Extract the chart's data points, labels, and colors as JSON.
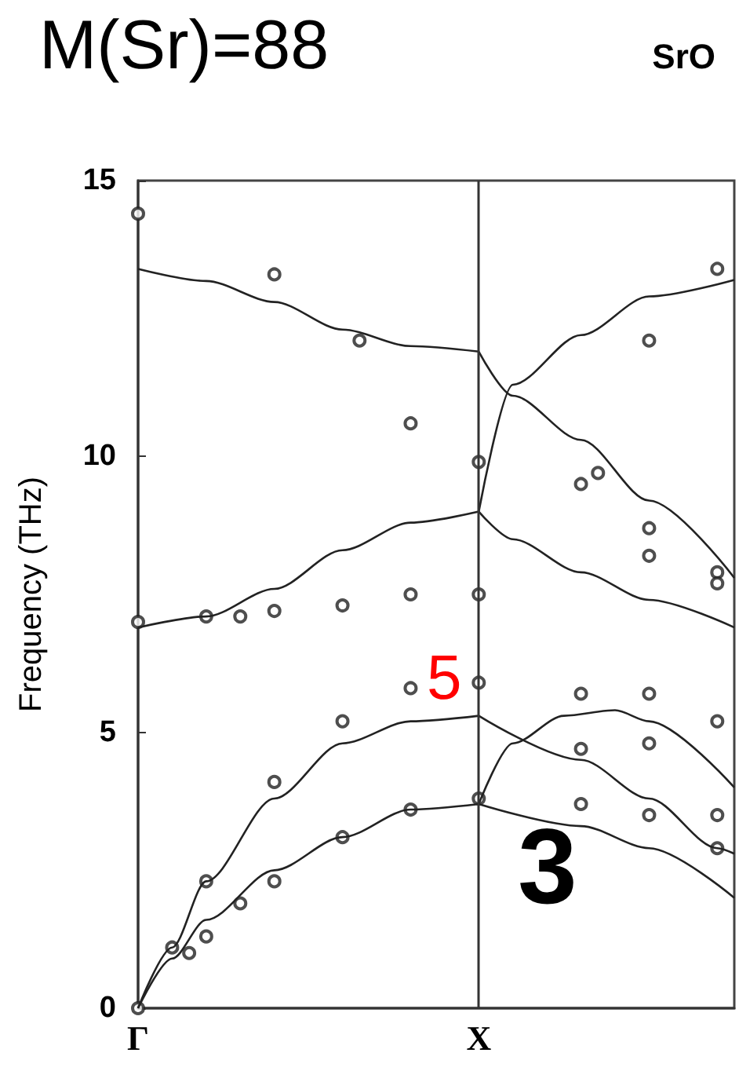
{
  "chart_data": {
    "type": "line",
    "title": "M(Sr)=88",
    "subtitle": "SrO",
    "ylabel": "Frequency (THz)",
    "categories": [
      "Γ",
      null,
      null,
      null,
      null,
      null,
      null,
      null,
      null,
      null,
      null,
      null,
      null,
      null,
      null,
      null,
      null,
      null,
      null,
      null,
      "X",
      null,
      null,
      null,
      null,
      null,
      null,
      null,
      null,
      null,
      null,
      null,
      null,
      null,
      null,
      null
    ],
    "ylim": [
      0,
      15
    ],
    "yticks": [
      0,
      5,
      10,
      15
    ],
    "ref_lines": [
      {
        "axis": "x",
        "value": "X",
        "color": "#333333"
      }
    ],
    "annotations": [
      "5",
      "3"
    ],
    "series": [
      {
        "type": "line",
        "color": "#222222",
        "marker": "none",
        "values": [
          13.4,
          null,
          null,
          null,
          13.18,
          null,
          null,
          null,
          12.8,
          null,
          null,
          null,
          12.3,
          null,
          null,
          null,
          12.0,
          null,
          null,
          null,
          11.9,
          null,
          null,
          null,
          null,
          null,
          null,
          null,
          null,
          null,
          null,
          null,
          null,
          null,
          null,
          null
        ]
      },
      {
        "type": "line",
        "color": "#222222",
        "marker": "none",
        "values": [
          6.9,
          null,
          null,
          null,
          7.1,
          null,
          null,
          null,
          7.6,
          null,
          null,
          null,
          8.3,
          null,
          null,
          null,
          8.8,
          null,
          null,
          null,
          9.0,
          null,
          null,
          null,
          null,
          null,
          null,
          null,
          null,
          null,
          null,
          null,
          null,
          null,
          null,
          null
        ]
      },
      {
        "type": "line",
        "color": "#222222",
        "marker": "none",
        "values": [
          0,
          null,
          1.1,
          null,
          2.3,
          null,
          null,
          null,
          3.8,
          null,
          null,
          null,
          4.8,
          null,
          null,
          null,
          5.2,
          null,
          null,
          null,
          5.3,
          null,
          null,
          null,
          null,
          null,
          null,
          null,
          null,
          null,
          null,
          null,
          null,
          null,
          null,
          null
        ]
      },
      {
        "type": "line",
        "color": "#222222",
        "marker": "none",
        "values": [
          0,
          null,
          0.9,
          null,
          1.6,
          null,
          null,
          null,
          2.5,
          null,
          null,
          null,
          3.1,
          null,
          null,
          null,
          3.6,
          null,
          null,
          null,
          3.7,
          null,
          null,
          null,
          null,
          null,
          null,
          null,
          null,
          null,
          null,
          null,
          null,
          null,
          null,
          null
        ]
      },
      {
        "type": "line",
        "color": "#222222",
        "marker": "none",
        "values": [
          null,
          null,
          null,
          null,
          null,
          null,
          null,
          null,
          null,
          null,
          null,
          null,
          null,
          null,
          null,
          null,
          null,
          null,
          null,
          null,
          3.7,
          null,
          null,
          null,
          null,
          null,
          3.3,
          null,
          null,
          null,
          2.9,
          null,
          null,
          null,
          null,
          2.0
        ]
      },
      {
        "type": "line",
        "color": "#222222",
        "marker": "none",
        "values": [
          null,
          null,
          null,
          null,
          null,
          null,
          null,
          null,
          null,
          null,
          null,
          null,
          null,
          null,
          null,
          null,
          null,
          null,
          null,
          null,
          5.3,
          null,
          null,
          null,
          null,
          null,
          4.5,
          null,
          null,
          null,
          3.8,
          null,
          null,
          null,
          2.9,
          2.8
        ]
      },
      {
        "type": "line",
        "color": "#222222",
        "marker": "none",
        "values": [
          null,
          null,
          null,
          null,
          null,
          null,
          null,
          null,
          null,
          null,
          null,
          null,
          null,
          null,
          null,
          null,
          null,
          null,
          null,
          null,
          11.9,
          null,
          11.1,
          null,
          null,
          null,
          10.3,
          null,
          null,
          null,
          9.2,
          null,
          null,
          null,
          null,
          7.8
        ]
      },
      {
        "type": "line",
        "color": "#222222",
        "marker": "none",
        "values": [
          null,
          null,
          null,
          null,
          null,
          null,
          null,
          null,
          null,
          null,
          null,
          null,
          null,
          null,
          null,
          null,
          null,
          null,
          null,
          null,
          9.0,
          null,
          8.5,
          null,
          null,
          null,
          7.9,
          null,
          null,
          null,
          7.4,
          null,
          null,
          null,
          null,
          6.9
        ]
      },
      {
        "type": "line",
        "color": "#222222",
        "marker": "none",
        "values": [
          null,
          null,
          null,
          null,
          null,
          null,
          null,
          null,
          null,
          null,
          null,
          null,
          null,
          null,
          null,
          null,
          null,
          null,
          null,
          null,
          9.0,
          null,
          11.3,
          null,
          null,
          null,
          12.2,
          null,
          null,
          null,
          12.9,
          null,
          null,
          null,
          null,
          13.2
        ]
      },
      {
        "type": "line",
        "color": "#222222",
        "marker": "none",
        "values": [
          null,
          null,
          null,
          null,
          null,
          null,
          null,
          null,
          null,
          null,
          null,
          null,
          null,
          null,
          null,
          null,
          null,
          null,
          null,
          null,
          3.7,
          null,
          4.8,
          null,
          null,
          5.3,
          null,
          null,
          5.4,
          null,
          5.2,
          null,
          null,
          null,
          null,
          4.0
        ]
      },
      {
        "type": "scatter",
        "color": "#222222",
        "marker": "circle",
        "values": [
          14.4,
          null,
          1.1,
          1.0,
          7.1,
          null,
          7.1,
          null,
          13.3,
          null,
          null,
          null,
          7.3,
          12.1,
          null,
          null,
          10.6,
          null,
          null,
          null,
          9.9,
          null,
          null,
          null,
          null,
          null,
          9.5,
          9.7,
          null,
          null,
          12.1,
          null,
          null,
          null,
          13.4,
          null
        ]
      },
      {
        "type": "scatter",
        "color": "#222222",
        "marker": "circle",
        "values": [
          7.0,
          null,
          null,
          null,
          2.3,
          null,
          1.9,
          null,
          7.2,
          null,
          null,
          null,
          5.2,
          null,
          null,
          null,
          7.5,
          null,
          null,
          null,
          7.5,
          null,
          null,
          null,
          null,
          null,
          5.7,
          null,
          null,
          null,
          8.7,
          null,
          null,
          null,
          7.9,
          null
        ]
      },
      {
        "type": "scatter",
        "color": "#222222",
        "marker": "circle",
        "values": [
          0,
          null,
          null,
          null,
          1.3,
          null,
          null,
          null,
          4.1,
          null,
          null,
          null,
          3.1,
          null,
          null,
          null,
          5.8,
          null,
          null,
          null,
          5.9,
          null,
          null,
          null,
          null,
          null,
          4.7,
          null,
          null,
          null,
          8.2,
          null,
          null,
          null,
          7.7,
          null
        ]
      },
      {
        "type": "scatter",
        "color": "#222222",
        "marker": "circle",
        "values": [
          null,
          null,
          null,
          null,
          null,
          null,
          null,
          null,
          2.3,
          null,
          null,
          null,
          null,
          null,
          null,
          null,
          3.6,
          null,
          null,
          null,
          3.8,
          null,
          null,
          null,
          null,
          null,
          3.7,
          null,
          null,
          null,
          5.7,
          null,
          null,
          null,
          5.2,
          null
        ]
      },
      {
        "type": "scatter",
        "color": "#222222",
        "marker": "circle",
        "values": [
          null,
          null,
          null,
          null,
          null,
          null,
          null,
          null,
          null,
          null,
          null,
          null,
          null,
          null,
          null,
          null,
          null,
          null,
          null,
          null,
          null,
          null,
          null,
          null,
          null,
          null,
          null,
          null,
          null,
          null,
          4.8,
          null,
          null,
          null,
          3.5,
          null
        ]
      },
      {
        "type": "scatter",
        "color": "#222222",
        "marker": "circle",
        "values": [
          null,
          null,
          null,
          null,
          null,
          null,
          null,
          null,
          null,
          null,
          null,
          null,
          null,
          null,
          null,
          null,
          null,
          null,
          null,
          null,
          null,
          null,
          null,
          null,
          null,
          null,
          null,
          null,
          null,
          null,
          3.5,
          null,
          null,
          null,
          2.9,
          null
        ]
      }
    ]
  }
}
